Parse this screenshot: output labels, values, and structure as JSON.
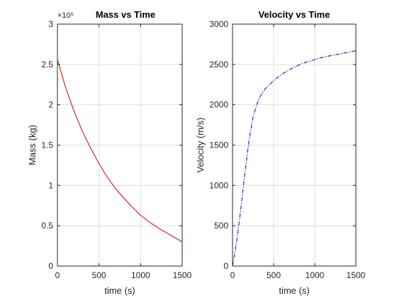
{
  "chart_data": [
    {
      "type": "line",
      "title": "Mass vs Time",
      "xlabel": "time (s)",
      "ylabel": "Mass (kg)",
      "y_exponent_label": "×10⁵",
      "xlim": [
        0,
        1500
      ],
      "ylim": [
        0,
        3
      ],
      "xticks": [
        0,
        500,
        1000,
        1500
      ],
      "yticks": [
        0,
        0.5,
        1,
        1.5,
        2,
        2.5,
        3
      ],
      "grid": true,
      "line_color": "#d40000",
      "line_style": "solid",
      "series": [
        {
          "x": [
            0,
            100,
            200,
            300,
            400,
            500,
            600,
            700,
            800,
            900,
            1000,
            1100,
            1200,
            1300,
            1400,
            1500
          ],
          "values": [
            2.56,
            2.21,
            1.92,
            1.67,
            1.46,
            1.27,
            1.1,
            0.96,
            0.84,
            0.73,
            0.63,
            0.55,
            0.48,
            0.42,
            0.36,
            0.3
          ]
        }
      ]
    },
    {
      "type": "line",
      "title": "Velocity vs Time",
      "xlabel": "time (s)",
      "ylabel": "Velocity (m/s)",
      "xlim": [
        0,
        1500
      ],
      "ylim": [
        0,
        3000
      ],
      "xticks": [
        0,
        500,
        1000,
        1500
      ],
      "yticks": [
        0,
        500,
        1000,
        1500,
        2000,
        2500,
        3000
      ],
      "grid": true,
      "line_color": "#0000cc",
      "line_style": "dash-dot",
      "series": [
        {
          "x": [
            0,
            50,
            100,
            150,
            200,
            250,
            300,
            350,
            400,
            500,
            600,
            700,
            800,
            900,
            1000,
            1100,
            1200,
            1300,
            1400,
            1500
          ],
          "values": [
            0,
            300,
            700,
            1150,
            1550,
            1850,
            2020,
            2130,
            2200,
            2300,
            2380,
            2440,
            2490,
            2530,
            2560,
            2590,
            2610,
            2630,
            2650,
            2670
          ]
        }
      ]
    }
  ]
}
